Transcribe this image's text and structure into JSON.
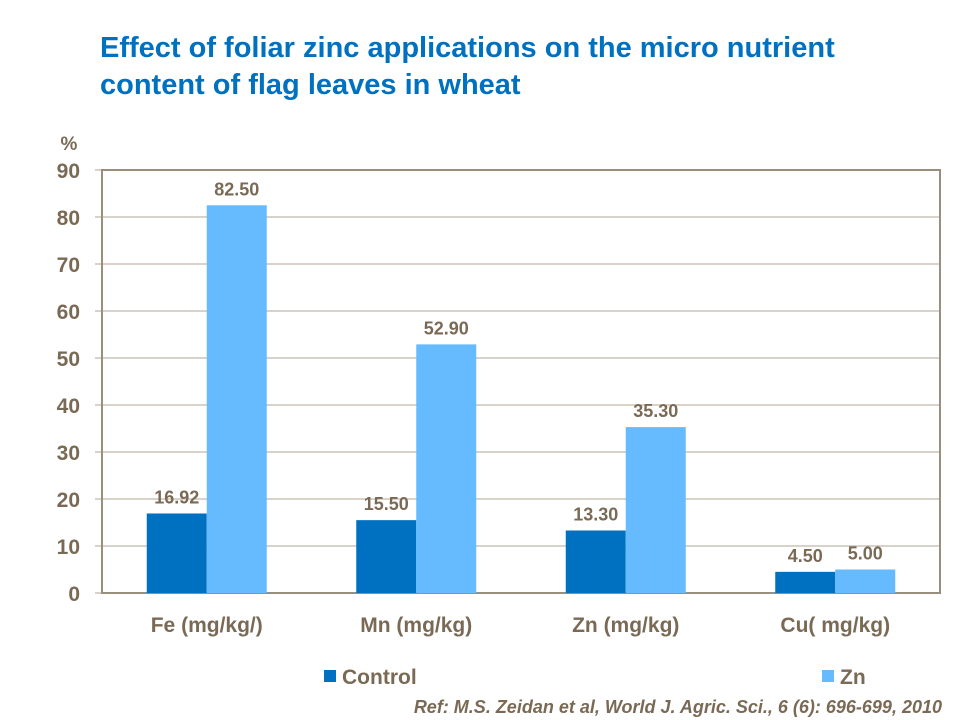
{
  "title": "Effect of foliar zinc applications on the micro nutrient content of flag leaves in wheat",
  "reference": "Ref: M.S. Zeidan et al, World J. Agric. Sci., 6 (6): 696-699, 2010",
  "chart_data": {
    "type": "bar",
    "title": "Effect of foliar zinc applications on the micro nutrient content of flag leaves in wheat",
    "ylabel": "%",
    "xlabel": "",
    "ylim": [
      0,
      90
    ],
    "yticks": [
      0,
      10,
      20,
      30,
      40,
      50,
      60,
      70,
      80,
      90
    ],
    "grid": true,
    "legend": "bottom",
    "categories": [
      "Fe (mg/kg/)",
      "Mn (mg/kg)",
      "Zn (mg/kg)",
      "Cu( mg/kg)"
    ],
    "series": [
      {
        "name": "Control",
        "color": "#0070c0",
        "values": [
          16.92,
          15.5,
          13.3,
          4.5
        ],
        "labels": [
          "16.92",
          "15.50",
          "13.30",
          "4.50"
        ]
      },
      {
        "name": "Zn",
        "color": "#66bbff",
        "values": [
          82.5,
          52.9,
          35.3,
          5.0
        ],
        "labels": [
          "82.50",
          "52.90",
          "35.30",
          "5.00"
        ]
      }
    ]
  }
}
